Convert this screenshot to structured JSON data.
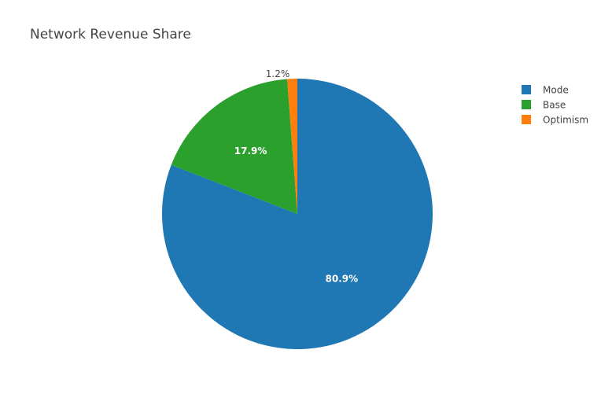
{
  "chart_data": {
    "type": "pie",
    "title": "Network Revenue Share",
    "categories": [
      "Mode",
      "Base",
      "Optimism"
    ],
    "values": [
      80.9,
      17.9,
      1.2
    ],
    "labels": [
      "80.9%",
      "17.9%",
      "1.2%"
    ],
    "colors": [
      "#1f77b4",
      "#2ca02c",
      "#ff7f0e"
    ],
    "legend": {
      "placement": "top-right",
      "items": [
        "Mode",
        "Base",
        "Optimism"
      ]
    },
    "direction": "clockwise",
    "start": "top"
  }
}
